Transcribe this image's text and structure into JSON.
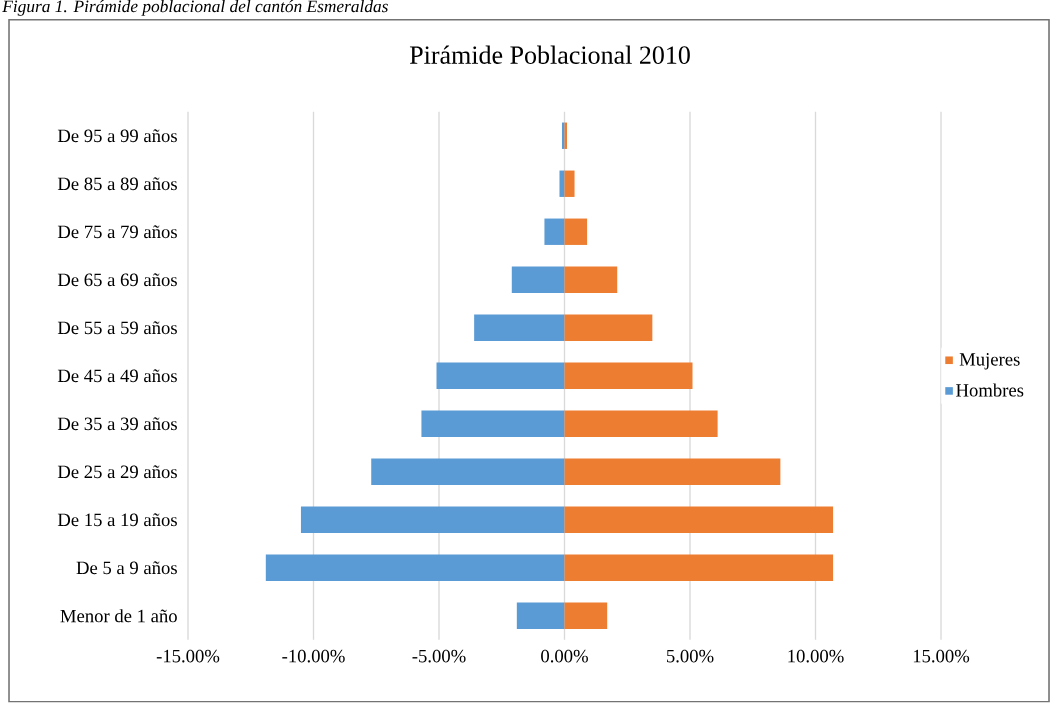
{
  "chart_data": {
    "type": "bar",
    "orientation": "horizontal",
    "title": "Pirámide Poblacional 2010",
    "annotations": [
      "Figura 1. Pirámide poblacional del cantón Esmeraldas"
    ],
    "categories": [
      "De 95 a 99 años",
      "De 85 a 89 años",
      "De 75 a 79 años",
      "De 65 a 69 años",
      "De 55 a 59 años",
      "De 45 a 49 años",
      "De 35 a 39 años",
      "De 25 a 29 años",
      "De 15 a 19 años",
      "De 5 a 9 años",
      "Menor de 1 año"
    ],
    "series": [
      {
        "name": "Hombres",
        "color": "#5b9bd5",
        "values": [
          -0.1,
          -0.2,
          -0.8,
          -2.1,
          -3.6,
          -5.1,
          -5.7,
          -7.7,
          -10.5,
          -11.9,
          -1.9
        ]
      },
      {
        "name": "Mujeres",
        "color": "#ed7d31",
        "values": [
          0.1,
          0.4,
          0.9,
          2.1,
          3.5,
          5.1,
          6.1,
          8.6,
          10.7,
          10.7,
          1.7
        ]
      }
    ],
    "xlim": [
      -15,
      15
    ],
    "xticks": [
      {
        "value": -15,
        "label": "-15.00%"
      },
      {
        "value": -10,
        "label": "-10.00%"
      },
      {
        "value": -5,
        "label": "-5.00%"
      },
      {
        "value": 0,
        "label": "0.00%"
      },
      {
        "value": 5,
        "label": "5.00%"
      },
      {
        "value": 10,
        "label": "10.00%"
      },
      {
        "value": 15,
        "label": "15.00%"
      }
    ],
    "stacked": true,
    "grid": "x",
    "legend": "right"
  }
}
